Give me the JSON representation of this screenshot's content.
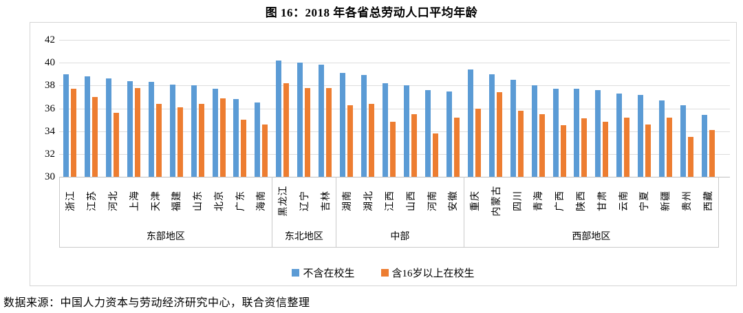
{
  "title": "图 16：2018 年各省总劳动人口平均年龄",
  "source": "数据来源：中国人力资本与劳动经济研究中心，联合资信整理",
  "colors": {
    "series_blue": "#5B9BD5",
    "series_orange": "#ED7D31",
    "gridline": "#dcdcdc",
    "border": "#d4d4d4"
  },
  "legend": {
    "items": [
      {
        "label": "不含在校生",
        "color": "#5B9BD5"
      },
      {
        "label": "含16岁以上在校生",
        "color": "#ED7D31"
      }
    ],
    "position": "bottom"
  },
  "chart_data": {
    "type": "bar",
    "title": "图 16：2018 年各省总劳动人口平均年龄",
    "xlabel": "",
    "ylabel": "",
    "ylim": [
      30,
      42
    ],
    "yticks": [
      42,
      40,
      38,
      36,
      34,
      32,
      30
    ],
    "grid": true,
    "legend_position": "bottom",
    "series_names": [
      "不含在校生",
      "含16岁以上在校生"
    ],
    "groups": [
      {
        "region": "东部地区",
        "categories": [
          "浙江",
          "江苏",
          "河北",
          "上海",
          "天津",
          "福建",
          "山东",
          "北京",
          "广东",
          "海南"
        ],
        "series": [
          {
            "name": "不含在校生",
            "values": [
              39.0,
              38.8,
              38.6,
              38.4,
              38.3,
              38.1,
              38.0,
              37.7,
              36.8,
              36.5
            ]
          },
          {
            "name": "含16岁以上在校生",
            "values": [
              37.7,
              37.0,
              35.6,
              37.8,
              36.4,
              36.1,
              36.4,
              36.9,
              35.0,
              34.6
            ]
          }
        ]
      },
      {
        "region": "东北地区",
        "categories": [
          "黑龙江",
          "辽宁",
          "吉林"
        ],
        "series": [
          {
            "name": "不含在校生",
            "values": [
              40.2,
              40.0,
              39.8
            ]
          },
          {
            "name": "含16岁以上在校生",
            "values": [
              38.2,
              37.8,
              37.8
            ]
          }
        ]
      },
      {
        "region": "中部",
        "categories": [
          "湖南",
          "湖北",
          "江西",
          "山西",
          "河南",
          "安徽"
        ],
        "series": [
          {
            "name": "不含在校生",
            "values": [
              39.1,
              38.9,
              38.2,
              38.0,
              37.6,
              37.5
            ]
          },
          {
            "name": "含16岁以上在校生",
            "values": [
              36.3,
              36.4,
              34.8,
              35.5,
              33.8,
              35.2
            ]
          }
        ]
      },
      {
        "region": "西部地区",
        "categories": [
          "重庆",
          "内蒙古",
          "四川",
          "青海",
          "广西",
          "陕西",
          "甘肃",
          "云南",
          "宁夏",
          "新疆",
          "贵州",
          "西藏"
        ],
        "series": [
          {
            "name": "不含在校生",
            "values": [
              39.4,
              39.0,
              38.5,
              38.0,
              37.7,
              37.7,
              37.6,
              37.3,
              37.2,
              36.7,
              36.3,
              35.4
            ]
          },
          {
            "name": "含16岁以上在校生",
            "values": [
              36.0,
              37.4,
              35.8,
              35.5,
              34.5,
              35.1,
              34.8,
              35.2,
              34.6,
              35.2,
              33.5,
              34.1
            ]
          }
        ]
      }
    ]
  }
}
